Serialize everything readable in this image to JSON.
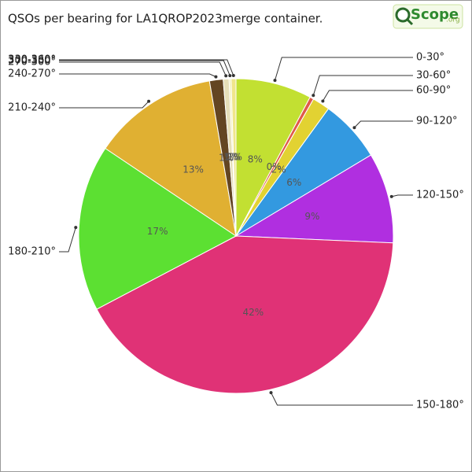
{
  "chart_data": {
    "type": "pie",
    "title": "QSOs per bearing for LA1QROP2023merge container.",
    "categories": [
      "0-30°",
      "30-60°",
      "60-90°",
      "90-120°",
      "120-150°",
      "150-180°",
      "180-210°",
      "210-240°",
      "240-270°",
      "270-300°",
      "300-330°",
      "330-360°"
    ],
    "values": [
      7.8,
      0.4,
      1.8,
      6.4,
      9.3,
      41.6,
      17.1,
      12.9,
      1.4,
      0.6,
      0.2,
      0.5
    ],
    "value_labels": [
      "8%",
      "0%",
      "2%",
      "6%",
      "9%",
      "42%",
      "17%",
      "13%",
      "1%",
      "1%",
      "0%",
      "1%"
    ],
    "colors": [
      "#c2e032",
      "#e05a4a",
      "#e2d232",
      "#3399e0",
      "#b02fe0",
      "#e03276",
      "#5ce032",
      "#e0b032",
      "#634522",
      "#e6dfb8",
      "#f2f0b4",
      "#f0e68a"
    ]
  },
  "logo": {
    "name": "Scope",
    "suffix": ".org"
  }
}
